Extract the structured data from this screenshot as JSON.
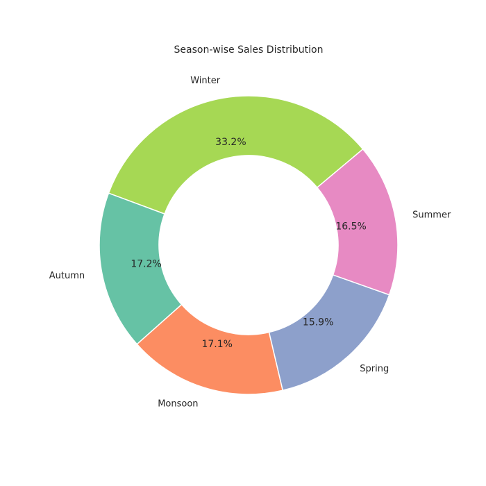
{
  "chart_data": {
    "type": "pie",
    "style": "donut",
    "title": "Season-wise Sales Distribution",
    "categories": [
      "Winter",
      "Autumn",
      "Monsoon",
      "Spring",
      "Summer"
    ],
    "values": [
      33.2,
      17.2,
      17.1,
      15.9,
      16.5
    ],
    "value_labels": [
      "33.2%",
      "17.2%",
      "17.1%",
      "15.9%",
      "16.5%"
    ],
    "colors": [
      "#a6d854",
      "#66c2a5",
      "#fc8d62",
      "#8da0cb",
      "#e78ac3"
    ],
    "legend": "none",
    "grid": false
  }
}
